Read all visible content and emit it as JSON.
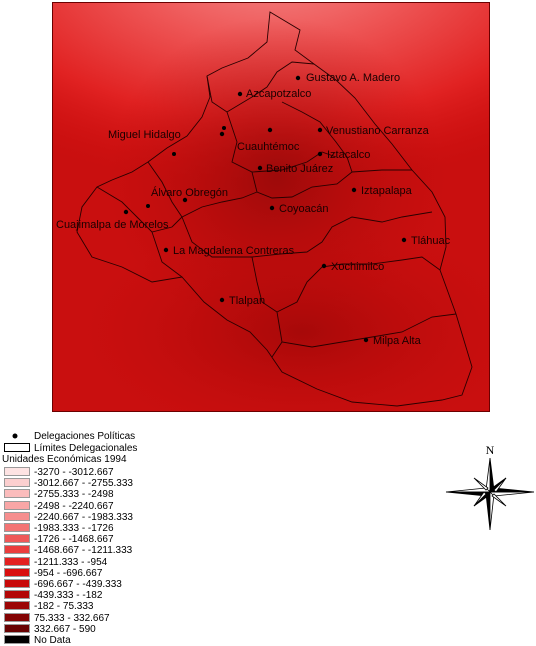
{
  "map": {
    "labels": [
      {
        "name": "Gustavo A. Madero"
      },
      {
        "name": "Azcapotzalco"
      },
      {
        "name": "Miguel Hidalgo"
      },
      {
        "name": "Cuauhtémoc"
      },
      {
        "name": "Venustiano Carranza"
      },
      {
        "name": "Iztacalco"
      },
      {
        "name": "Benito Juárez"
      },
      {
        "name": "Álvaro Obregón"
      },
      {
        "name": "Iztapalapa"
      },
      {
        "name": "Coyoacán"
      },
      {
        "name": "Cuajimalpa de Morelos"
      },
      {
        "name": "Tláhuac"
      },
      {
        "name": "La Magdalena Contreras"
      },
      {
        "name": "Xochimilco"
      },
      {
        "name": "Tlalpan"
      },
      {
        "name": "Milpa Alta"
      }
    ]
  },
  "legend": {
    "points_label": "Delegaciones Políticas",
    "boundary_label": "Límites Delegacionales",
    "title": "Unidades Económicas 1994",
    "classes": [
      {
        "label": "-3270 - -3012.667",
        "color": "#fde3e3"
      },
      {
        "label": "-3012.667 - -2755.333",
        "color": "#fccfcf"
      },
      {
        "label": "-2755.333 - -2498",
        "color": "#fbbcbc"
      },
      {
        "label": "-2498 - -2240.667",
        "color": "#f9a6a6"
      },
      {
        "label": "-2240.667 - -1983.333",
        "color": "#f68e8e"
      },
      {
        "label": "-1983.333 - -1726",
        "color": "#f37474"
      },
      {
        "label": "-1726 - -1468.667",
        "color": "#ef5858"
      },
      {
        "label": "-1468.667 - -1211.333",
        "color": "#ea3d3d"
      },
      {
        "label": "-1211.333 - -954",
        "color": "#e32121"
      },
      {
        "label": "-954 - -696.667",
        "color": "#d90e0e"
      },
      {
        "label": "-696.667 - -439.333",
        "color": "#c80a0a"
      },
      {
        "label": "-439.333 - -182",
        "color": "#b30707"
      },
      {
        "label": "-182 - 75.333",
        "color": "#9c0505"
      },
      {
        "label": "75.333 - 332.667",
        "color": "#830303"
      },
      {
        "label": "332.667 - 590",
        "color": "#690202"
      },
      {
        "label": "No Data",
        "color": "#000000"
      }
    ]
  },
  "compass": {
    "north_label": "N"
  }
}
